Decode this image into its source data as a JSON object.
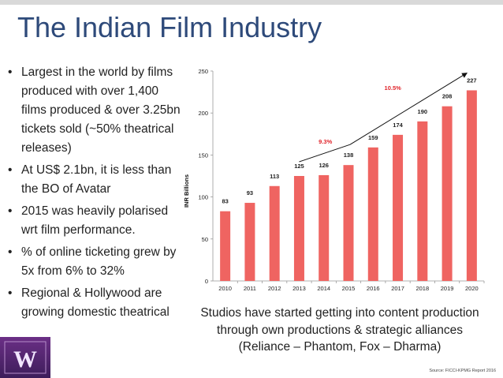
{
  "slide": {
    "title": "The Indian Film Industry",
    "bullets": [
      "Largest in the world by films produced with over 1,400 films produced & over 3.25bn tickets sold (~50% theatrical releases)",
      "At US$ 2.1bn, it is less than the BO of Avatar",
      "2015 was heavily polarised wrt film performance.",
      "% of online ticketing grew by 5x from 6% to 32%",
      "Regional & Hollywood are growing domestic theatrical"
    ],
    "bullet_glyph": "•",
    "caption": [
      "Studios have started getting into content production",
      "through own productions & strategic alliances",
      "(Reliance – Phantom, Fox – Dharma)"
    ],
    "source": "Source: FICCI-KPMG Report 2016",
    "logo_letter": "W"
  },
  "chart_data": {
    "type": "bar",
    "categories": [
      "2010",
      "2011",
      "2012",
      "2013",
      "2014",
      "2015",
      "2016",
      "2017",
      "2018",
      "2019",
      "2020"
    ],
    "values": [
      83,
      93,
      113,
      125,
      126,
      138,
      159,
      174,
      190,
      208,
      227
    ],
    "ylabel": "INR Billions",
    "xlabel": "",
    "ylim": [
      0,
      250
    ],
    "yticks": [
      0,
      50,
      100,
      150,
      200,
      250
    ],
    "bar_color": "#ef6461",
    "grid": false,
    "annotations": [
      {
        "text": "9.3%",
        "color": "#e0252b"
      },
      {
        "text": "10.5%",
        "color": "#e0252b"
      }
    ]
  }
}
